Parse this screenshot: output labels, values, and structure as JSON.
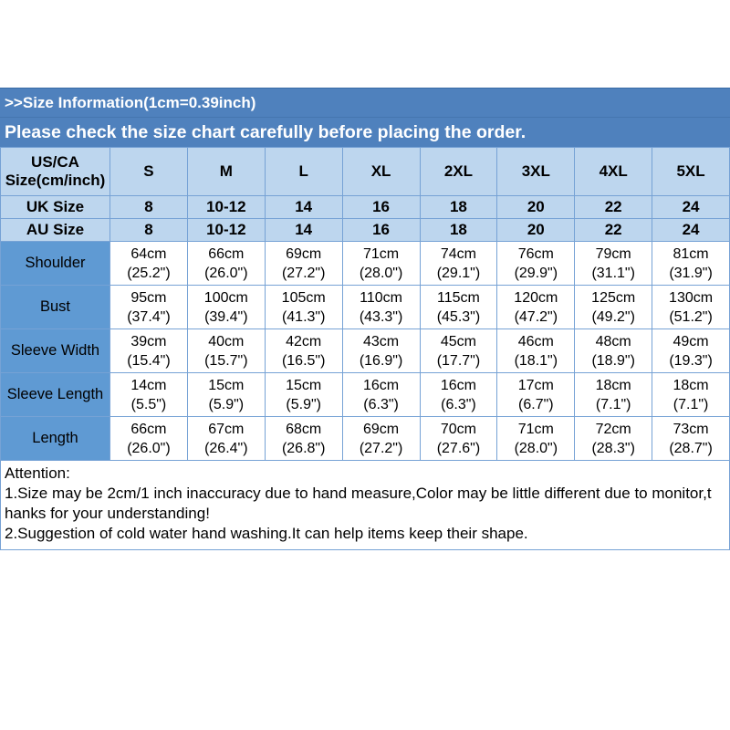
{
  "banner": {
    "title": ">>Size Information(1cm=0.39inch)",
    "subtitle": "Please check the size chart carefully before placing the order."
  },
  "colors": {
    "banner_bg": "#4f81bd",
    "banner_text": "#ffffff",
    "header_cell_bg": "#bdd6ee",
    "label_cell_bg": "#5f9ad3",
    "grid_line": "#76a2d5",
    "cell_text": "#000000"
  },
  "size_table": {
    "header": [
      "US/CA\nSize(cm/inch)",
      "S",
      "M",
      "L",
      "XL",
      "2XL",
      "3XL",
      "4XL",
      "5XL"
    ],
    "uk_row": {
      "label": "UK Size",
      "values": [
        "8",
        "10-12",
        "14",
        "16",
        "18",
        "20",
        "22",
        "24"
      ]
    },
    "au_row": {
      "label": "AU Size",
      "values": [
        "8",
        "10-12",
        "14",
        "16",
        "18",
        "20",
        "22",
        "24"
      ]
    },
    "measure_rows": [
      {
        "label": "Shoulder",
        "cells": [
          {
            "cm": "64cm",
            "in": "(25.2\")"
          },
          {
            "cm": "66cm",
            "in": "(26.0\")"
          },
          {
            "cm": "69cm",
            "in": "(27.2\")"
          },
          {
            "cm": "71cm",
            "in": "(28.0\")"
          },
          {
            "cm": "74cm",
            "in": "(29.1\")"
          },
          {
            "cm": "76cm",
            "in": "(29.9\")"
          },
          {
            "cm": "79cm",
            "in": "(31.1\")"
          },
          {
            "cm": "81cm",
            "in": "(31.9\")"
          }
        ]
      },
      {
        "label": "Bust",
        "cells": [
          {
            "cm": "95cm",
            "in": "(37.4\")"
          },
          {
            "cm": "100cm",
            "in": "(39.4\")"
          },
          {
            "cm": "105cm",
            "in": "(41.3\")"
          },
          {
            "cm": "110cm",
            "in": "(43.3\")"
          },
          {
            "cm": "115cm",
            "in": "(45.3\")"
          },
          {
            "cm": "120cm",
            "in": "(47.2\")"
          },
          {
            "cm": "125cm",
            "in": "(49.2\")"
          },
          {
            "cm": "130cm",
            "in": "(51.2\")"
          }
        ]
      },
      {
        "label": "Sleeve Width",
        "cells": [
          {
            "cm": "39cm",
            "in": "(15.4\")"
          },
          {
            "cm": "40cm",
            "in": "(15.7\")"
          },
          {
            "cm": "42cm",
            "in": "(16.5\")"
          },
          {
            "cm": "43cm",
            "in": "(16.9\")"
          },
          {
            "cm": "45cm",
            "in": "(17.7\")"
          },
          {
            "cm": "46cm",
            "in": "(18.1\")"
          },
          {
            "cm": "48cm",
            "in": "(18.9\")"
          },
          {
            "cm": "49cm",
            "in": "(19.3\")"
          }
        ]
      },
      {
        "label": "Sleeve Length",
        "cells": [
          {
            "cm": "14cm",
            "in": "(5.5\")"
          },
          {
            "cm": "15cm",
            "in": "(5.9\")"
          },
          {
            "cm": "15cm",
            "in": "(5.9\")"
          },
          {
            "cm": "16cm",
            "in": "(6.3\")"
          },
          {
            "cm": "16cm",
            "in": "(6.3\")"
          },
          {
            "cm": "17cm",
            "in": "(6.7\")"
          },
          {
            "cm": "18cm",
            "in": "(7.1\")"
          },
          {
            "cm": "18cm",
            "in": "(7.1\")"
          }
        ]
      },
      {
        "label": "Length",
        "cells": [
          {
            "cm": "66cm",
            "in": "(26.0\")"
          },
          {
            "cm": "67cm",
            "in": "(26.4\")"
          },
          {
            "cm": "68cm",
            "in": "(26.8\")"
          },
          {
            "cm": "69cm",
            "in": "(27.2\")"
          },
          {
            "cm": "70cm",
            "in": "(27.6\")"
          },
          {
            "cm": "71cm",
            "in": "(28.0\")"
          },
          {
            "cm": "72cm",
            "in": "(28.3\")"
          },
          {
            "cm": "73cm",
            "in": "(28.7\")"
          }
        ]
      }
    ]
  },
  "attention": {
    "title": "Attention:",
    "lines": [
      "1.Size may be 2cm/1 inch inaccuracy due to hand measure,Color may be little different due to monitor,t",
      "hanks for your understanding!",
      "2.Suggestion of cold water hand washing.It can help items keep their shape."
    ]
  }
}
